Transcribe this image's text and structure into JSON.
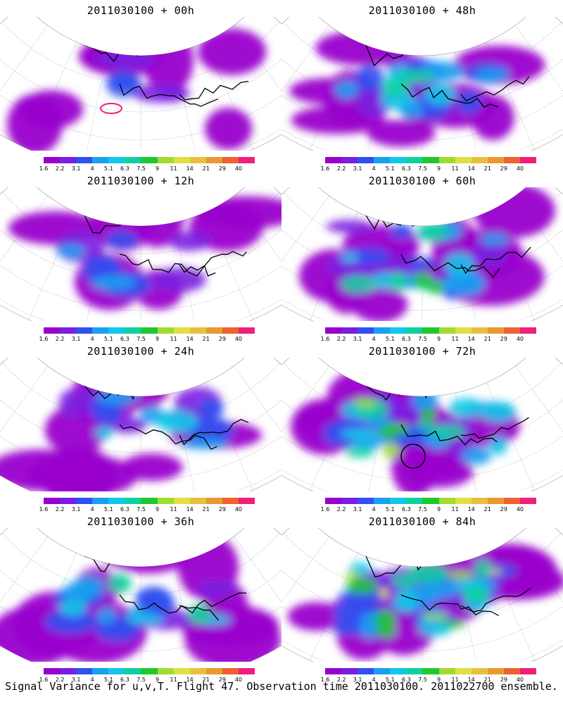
{
  "panels": [
    {
      "title": "2011030100 + 00h",
      "intensity": 0.25,
      "circle": false,
      "pinkRing": true
    },
    {
      "title": "2011030100 + 48h",
      "intensity": 0.55,
      "circle": false,
      "pinkRing": false
    },
    {
      "title": "2011030100 + 12h",
      "intensity": 0.3,
      "circle": false,
      "pinkRing": false
    },
    {
      "title": "2011030100 + 60h",
      "intensity": 0.65,
      "circle": false,
      "pinkRing": false
    },
    {
      "title": "2011030100 + 24h",
      "intensity": 0.4,
      "circle": false,
      "pinkRing": false
    },
    {
      "title": "2011030100 + 72h",
      "intensity": 0.75,
      "circle": true,
      "pinkRing": false
    },
    {
      "title": "2011030100 + 36h",
      "intensity": 0.5,
      "circle": false,
      "pinkRing": false
    },
    {
      "title": "2011030100 + 84h",
      "intensity": 0.85,
      "circle": false,
      "pinkRing": false
    }
  ],
  "colorbar": {
    "labels": [
      "1.6",
      "2.2",
      "3.1",
      "4",
      "5.1",
      "6.3",
      "7.5",
      "9",
      "11",
      "14",
      "21",
      "29",
      "40"
    ],
    "colors": [
      "#9900cc",
      "#7a1ee0",
      "#3050f0",
      "#1aa0f0",
      "#10c8e8",
      "#10d0a0",
      "#20c830",
      "#a0dc30",
      "#e0e040",
      "#e8c040",
      "#e89a30",
      "#f06030",
      "#f0207a"
    ]
  },
  "footer": "Signal Variance for u,v,T. Flight 47. Observation time 2011030100. 2011022700 ensemble."
}
